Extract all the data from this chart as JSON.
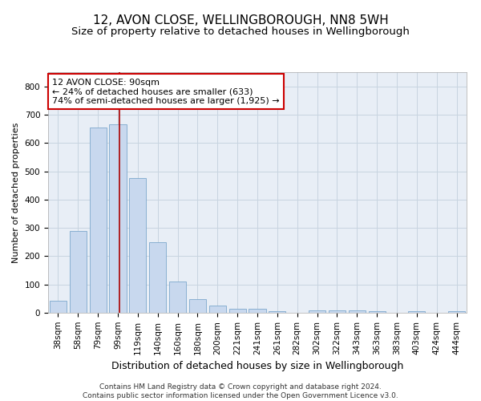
{
  "title": "12, AVON CLOSE, WELLINGBOROUGH, NN8 5WH",
  "subtitle": "Size of property relative to detached houses in Wellingborough",
  "xlabel": "Distribution of detached houses by size in Wellingborough",
  "ylabel": "Number of detached properties",
  "categories": [
    "38sqm",
    "58sqm",
    "79sqm",
    "99sqm",
    "119sqm",
    "140sqm",
    "160sqm",
    "180sqm",
    "200sqm",
    "221sqm",
    "241sqm",
    "261sqm",
    "282sqm",
    "302sqm",
    "322sqm",
    "343sqm",
    "363sqm",
    "383sqm",
    "403sqm",
    "424sqm",
    "444sqm"
  ],
  "values": [
    42,
    290,
    655,
    665,
    475,
    250,
    110,
    48,
    25,
    14,
    14,
    7,
    0,
    8,
    9,
    8,
    5,
    0,
    7,
    0,
    5
  ],
  "bar_color": "#c8d8ee",
  "bar_edge_color": "#7da8cc",
  "grid_color": "#c8d4e0",
  "background_color": "#e8eef6",
  "annotation_text": "12 AVON CLOSE: 90sqm\n← 24% of detached houses are smaller (633)\n74% of semi-detached houses are larger (1,925) →",
  "annotation_box_color": "#ffffff",
  "annotation_box_edge": "#cc0000",
  "vline_color": "#aa0000",
  "vline_x": 3.1,
  "ylim": [
    0,
    850
  ],
  "yticks": [
    0,
    100,
    200,
    300,
    400,
    500,
    600,
    700,
    800
  ],
  "footer": "Contains HM Land Registry data © Crown copyright and database right 2024.\nContains public sector information licensed under the Open Government Licence v3.0.",
  "title_fontsize": 11,
  "subtitle_fontsize": 9.5,
  "xlabel_fontsize": 9,
  "ylabel_fontsize": 8,
  "tick_fontsize": 7.5,
  "annotation_fontsize": 8,
  "footer_fontsize": 6.5
}
